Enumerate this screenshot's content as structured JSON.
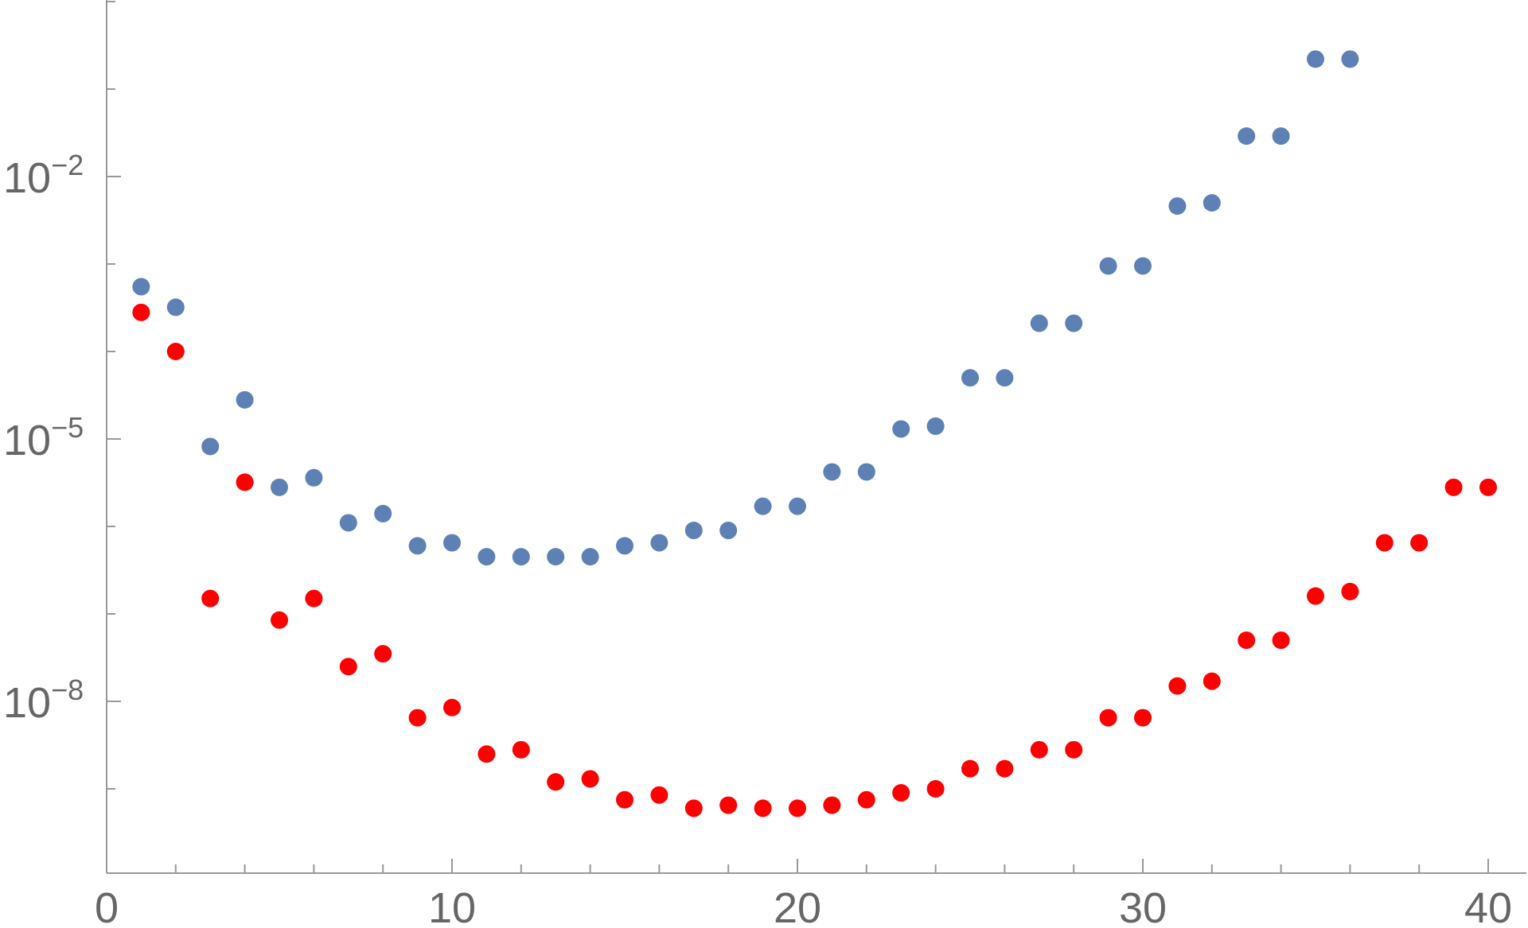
{
  "chart_data": {
    "type": "scatter",
    "title": "",
    "xlabel": "",
    "ylabel": "",
    "xlim": [
      0,
      41
    ],
    "ylim": [
      1e-10,
      1
    ],
    "yscale": "log",
    "grid": false,
    "legend": "none",
    "x_ticks": [
      {
        "value": 0,
        "label": "0"
      },
      {
        "value": 10,
        "label": "10"
      },
      {
        "value": 20,
        "label": "20"
      },
      {
        "value": 30,
        "label": "30"
      },
      {
        "value": 40,
        "label": "40"
      }
    ],
    "y_ticks": [
      {
        "value": 0.01,
        "base": "10",
        "exp": "−2"
      },
      {
        "value": 1e-05,
        "base": "10",
        "exp": "−5"
      },
      {
        "value": 1e-08,
        "base": "10",
        "exp": "−8"
      }
    ],
    "series": [
      {
        "color": "#5E81B5",
        "x": [
          1,
          2,
          3,
          4,
          5,
          6,
          7,
          8,
          9,
          10,
          11,
          12,
          13,
          14,
          15,
          16,
          17,
          18,
          19,
          20,
          21,
          22,
          23,
          24,
          25,
          26,
          27,
          28,
          29,
          30,
          31,
          32,
          33,
          34,
          35,
          36
        ],
        "y": [
          0.00055,
          0.00032,
          8.2e-06,
          2.8e-05,
          2.8e-06,
          3.6e-06,
          1.1e-06,
          1.4e-06,
          6e-07,
          6.5e-07,
          4.5e-07,
          4.5e-07,
          4.5e-07,
          4.5e-07,
          6e-07,
          6.5e-07,
          9e-07,
          9e-07,
          1.7e-06,
          1.7e-06,
          4.2e-06,
          4.2e-06,
          1.3e-05,
          1.4e-05,
          5e-05,
          5e-05,
          0.00021,
          0.00021,
          0.00095,
          0.00095,
          0.0046,
          0.005,
          0.029,
          0.029,
          0.22,
          0.22
        ]
      },
      {
        "color": "#FF0000",
        "x": [
          1,
          2,
          3,
          4,
          5,
          6,
          7,
          8,
          9,
          10,
          11,
          12,
          13,
          14,
          15,
          16,
          17,
          18,
          19,
          20,
          21,
          22,
          23,
          24,
          25,
          26,
          27,
          28,
          29,
          30,
          31,
          32,
          33,
          34,
          35,
          36,
          37,
          38,
          39,
          40
        ],
        "y": [
          0.00028,
          0.0001,
          1.5e-07,
          3.2e-06,
          8.5e-08,
          1.5e-07,
          2.5e-08,
          3.5e-08,
          6.5e-09,
          8.5e-09,
          2.5e-09,
          2.8e-09,
          1.2e-09,
          1.3e-09,
          7.5e-10,
          8.5e-10,
          6e-10,
          6.5e-10,
          6e-10,
          6e-10,
          6.5e-10,
          7.5e-10,
          9e-10,
          1e-09,
          1.7e-09,
          1.7e-09,
          2.8e-09,
          2.8e-09,
          6.5e-09,
          6.5e-09,
          1.5e-08,
          1.7e-08,
          5e-08,
          5e-08,
          1.6e-07,
          1.8e-07,
          6.5e-07,
          6.5e-07,
          2.8e-06,
          2.8e-06
        ]
      }
    ]
  }
}
